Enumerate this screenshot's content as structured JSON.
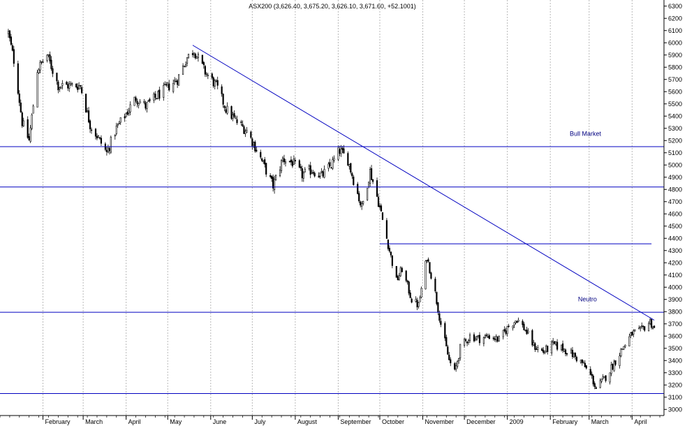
{
  "chart_data": {
    "type": "candlestick",
    "title": "ASX200 (3,626.40, 3,675.20, 3,626.10, 3,671.60, +52.1001)",
    "y_axis": {
      "position": "right",
      "range": [
        2950,
        6350
      ],
      "ticks": [
        3000,
        3100,
        3200,
        3300,
        3400,
        3500,
        3600,
        3700,
        3800,
        3900,
        4000,
        4100,
        4200,
        4300,
        4400,
        4500,
        4600,
        4700,
        4800,
        4900,
        5000,
        5100,
        5200,
        5300,
        5400,
        5500,
        5600,
        5700,
        5800,
        5900,
        6000,
        6100,
        6200,
        6300
      ]
    },
    "x_axis": {
      "months": [
        "February",
        "March",
        "April",
        "May",
        "June",
        "July",
        "August",
        "September",
        "October",
        "November",
        "December",
        "2009",
        "February",
        "March",
        "April"
      ],
      "gridlines": "dotted vertical at month starts"
    },
    "horizontal_levels": [
      5150,
      4820,
      4355,
      3795,
      3130
    ],
    "trendline": {
      "from": {
        "date": "2008-05-19",
        "value": 5980
      },
      "to": {
        "date": "2009-04-17",
        "value": 3730
      }
    },
    "annotations": [
      {
        "text": "Bull Market",
        "value": 5240
      },
      {
        "text": "Neutro",
        "value": 3885
      }
    ],
    "anchors": [
      [
        "2008-01-07",
        6080
      ],
      [
        "2008-01-12",
        5800
      ],
      [
        "2008-01-17",
        5350
      ],
      [
        "2008-01-22",
        5200
      ],
      [
        "2008-01-28",
        5780
      ],
      [
        "2008-02-04",
        5900
      ],
      [
        "2008-02-12",
        5650
      ],
      [
        "2008-02-20",
        5650
      ],
      [
        "2008-02-28",
        5650
      ],
      [
        "2008-03-06",
        5330
      ],
      [
        "2008-03-12",
        5220
      ],
      [
        "2008-03-18",
        5100
      ],
      [
        "2008-03-25",
        5300
      ],
      [
        "2008-04-01",
        5420
      ],
      [
        "2008-04-08",
        5550
      ],
      [
        "2008-04-15",
        5480
      ],
      [
        "2008-04-22",
        5550
      ],
      [
        "2008-04-29",
        5620
      ],
      [
        "2008-05-08",
        5700
      ],
      [
        "2008-05-15",
        5880
      ],
      [
        "2008-05-20",
        5940
      ],
      [
        "2008-05-28",
        5760
      ],
      [
        "2008-06-05",
        5650
      ],
      [
        "2008-06-12",
        5460
      ],
      [
        "2008-06-20",
        5350
      ],
      [
        "2008-06-27",
        5280
      ],
      [
        "2008-07-04",
        5130
      ],
      [
        "2008-07-10",
        4980
      ],
      [
        "2008-07-16",
        4830
      ],
      [
        "2008-07-23",
        5050
      ],
      [
        "2008-07-30",
        5020
      ],
      [
        "2008-08-06",
        4920
      ],
      [
        "2008-08-13",
        4960
      ],
      [
        "2008-08-20",
        4910
      ],
      [
        "2008-08-27",
        5000
      ],
      [
        "2008-09-02",
        5120
      ],
      [
        "2008-09-08",
        5040
      ],
      [
        "2008-09-12",
        4880
      ],
      [
        "2008-09-18",
        4650
      ],
      [
        "2008-09-24",
        4950
      ],
      [
        "2008-09-30",
        4700
      ],
      [
        "2008-10-03",
        4550
      ],
      [
        "2008-10-08",
        4300
      ],
      [
        "2008-10-13",
        4050
      ],
      [
        "2008-10-17",
        4150
      ],
      [
        "2008-10-24",
        3900
      ],
      [
        "2008-10-29",
        3850
      ],
      [
        "2008-11-04",
        4250
      ],
      [
        "2008-11-10",
        3950
      ],
      [
        "2008-11-14",
        3700
      ],
      [
        "2008-11-20",
        3400
      ],
      [
        "2008-11-24",
        3300
      ],
      [
        "2008-11-28",
        3500
      ],
      [
        "2008-12-05",
        3600
      ],
      [
        "2008-12-12",
        3580
      ],
      [
        "2008-12-19",
        3600
      ],
      [
        "2008-12-26",
        3570
      ],
      [
        "2009-01-02",
        3680
      ],
      [
        "2009-01-08",
        3740
      ],
      [
        "2009-01-14",
        3650
      ],
      [
        "2009-01-20",
        3520
      ],
      [
        "2009-01-27",
        3470
      ],
      [
        "2009-02-03",
        3530
      ],
      [
        "2009-02-10",
        3500
      ],
      [
        "2009-02-17",
        3450
      ],
      [
        "2009-02-24",
        3380
      ],
      [
        "2009-03-03",
        3260
      ],
      [
        "2009-03-06",
        3170
      ],
      [
        "2009-03-12",
        3250
      ],
      [
        "2009-03-18",
        3360
      ],
      [
        "2009-03-25",
        3500
      ],
      [
        "2009-04-01",
        3620
      ],
      [
        "2009-04-07",
        3640
      ],
      [
        "2009-04-14",
        3720
      ],
      [
        "2009-04-17",
        3660
      ]
    ]
  }
}
